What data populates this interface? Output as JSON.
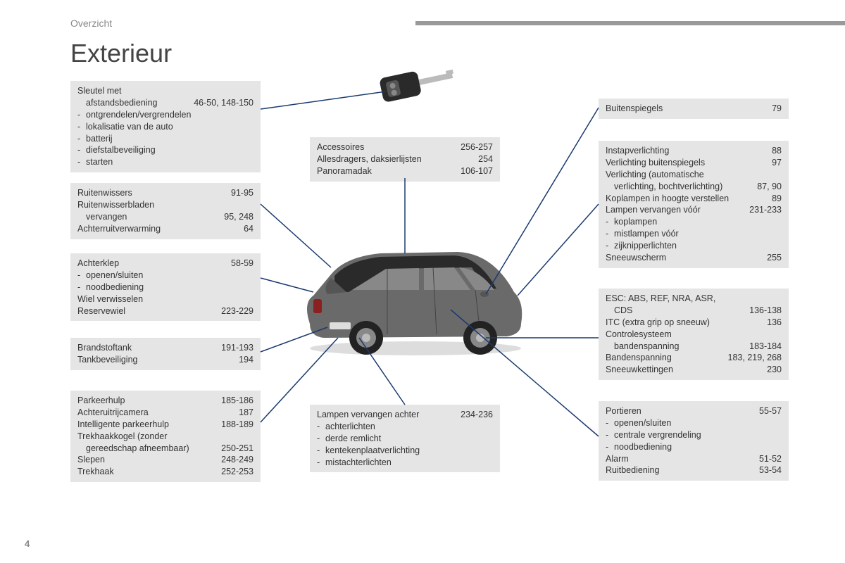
{
  "section_label": "Overzicht",
  "title": "Exterieur",
  "page_number": "4",
  "colors": {
    "box_bg": "#e5e5e5",
    "text": "#333333",
    "header_bar": "#999999",
    "line": "#1a3a6e"
  },
  "boxes": {
    "key": {
      "rows": [
        {
          "label": "Sleutel met",
          "page": ""
        },
        {
          "label_indent": "afstandsbediening",
          "page": "46-50, 148-150"
        },
        {
          "sub": "ontgrendelen/vergrendelen"
        },
        {
          "sub": "lokalisatie van de auto"
        },
        {
          "sub": "batterij"
        },
        {
          "sub": "diefstalbeveiliging"
        },
        {
          "sub": "starten"
        }
      ]
    },
    "wipers": {
      "rows": [
        {
          "label": "Ruitenwissers",
          "page": "91-95"
        },
        {
          "label": "Ruitenwisserbladen",
          "page": ""
        },
        {
          "label_indent": "vervangen",
          "page": "95, 248"
        },
        {
          "label": "Achterruitverwarming",
          "page": "64"
        }
      ]
    },
    "tailgate": {
      "rows": [
        {
          "label": "Achterklep",
          "page": "58-59"
        },
        {
          "sub": "openen/sluiten"
        },
        {
          "sub": "noodbediening"
        },
        {
          "label": "Wiel verwisselen",
          "page": ""
        },
        {
          "label": "Reservewiel",
          "page": "223-229"
        }
      ]
    },
    "fuel": {
      "rows": [
        {
          "label": "Brandstoftank",
          "page": "191-193"
        },
        {
          "label": "Tankbeveiliging",
          "page": "194"
        }
      ]
    },
    "parking": {
      "rows": [
        {
          "label": "Parkeerhulp",
          "page": "185-186"
        },
        {
          "label": "Achteruitrijcamera",
          "page": "187"
        },
        {
          "label": "Intelligente parkeerhulp",
          "page": "188-189"
        },
        {
          "label": "Trekhaakkogel (zonder",
          "page": ""
        },
        {
          "label_indent": "gereedschap afneembaar)",
          "page": "250-251"
        },
        {
          "label": "Slepen",
          "page": "248-249"
        },
        {
          "label": "Trekhaak",
          "page": "252-253"
        }
      ]
    },
    "accessories": {
      "rows": [
        {
          "label": "Accessoires",
          "page": "256-257"
        },
        {
          "label": "Allesdragers, daksierlijsten",
          "page": "254"
        },
        {
          "label": "Panoramadak",
          "page": "106-107"
        }
      ]
    },
    "rear_lamps": {
      "rows": [
        {
          "label": "Lampen vervangen achter",
          "page": "234-236"
        },
        {
          "sub": "achterlichten"
        },
        {
          "sub": "derde remlicht"
        },
        {
          "sub": "kentekenplaatverlichting"
        },
        {
          "sub": "mistachterlichten"
        }
      ]
    },
    "mirrors": {
      "rows": [
        {
          "label": "Buitenspiegels",
          "page": "79"
        }
      ]
    },
    "lighting": {
      "rows": [
        {
          "label": "Instapverlichting",
          "page": "88"
        },
        {
          "label": "Verlichting buitenspiegels",
          "page": "97"
        },
        {
          "label": "Verlichting (automatische",
          "page": ""
        },
        {
          "label_indent": "verlichting, bochtverlichting)",
          "page": "87, 90"
        },
        {
          "label": "Koplampen in hoogte verstellen",
          "page": "89"
        },
        {
          "label": "Lampen vervangen vóór",
          "page": "231-233"
        },
        {
          "sub": "koplampen"
        },
        {
          "sub": "mistlampen vóór"
        },
        {
          "sub": "zijknipperlichten"
        },
        {
          "label": "Sneeuwscherm",
          "page": "255"
        }
      ]
    },
    "esc": {
      "rows": [
        {
          "label": "ESC: ABS, REF, NRA, ASR,",
          "page": ""
        },
        {
          "label_indent": "CDS",
          "page": "136-138"
        },
        {
          "label": "ITC (extra grip op sneeuw)",
          "page": "136"
        },
        {
          "label": "Controlesysteem",
          "page": ""
        },
        {
          "label_indent": "bandenspanning",
          "page": "183-184"
        },
        {
          "label": "Bandenspanning",
          "page": "183, 219, 268"
        },
        {
          "label": "Sneeuwkettingen",
          "page": "230"
        }
      ]
    },
    "doors": {
      "rows": [
        {
          "label": "Portieren",
          "page": "55-57"
        },
        {
          "sub": "openen/sluiten"
        },
        {
          "sub": "centrale vergrendeling"
        },
        {
          "sub": "noodbediening"
        },
        {
          "label": "Alarm",
          "page": "51-52"
        },
        {
          "label": "Ruitbediening",
          "page": "53-54"
        }
      ]
    }
  }
}
